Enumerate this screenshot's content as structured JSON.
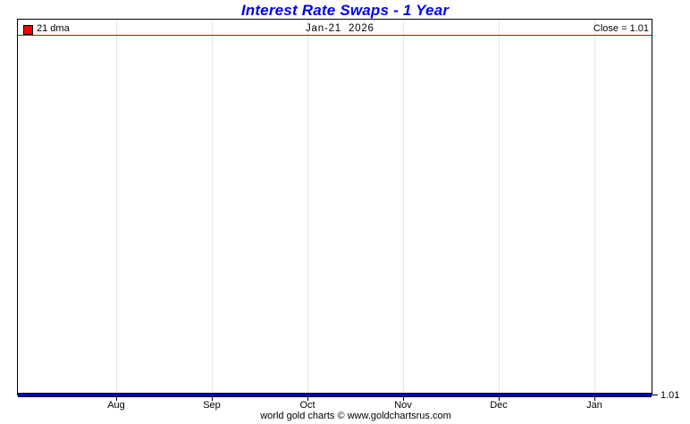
{
  "chart": {
    "title": "Interest Rate Swaps - 1 Year",
    "header": {
      "legend_label": "21 dma",
      "date": "Jan-21  2026",
      "close_label": "Close = 1.01"
    },
    "right_axis_label": "1.01",
    "footer": "world gold charts © www.goldchartsrus.com"
  },
  "chart_data": {
    "type": "line",
    "title": "Interest Rate Swaps - 1 Year",
    "x_ticks": [
      "Aug",
      "Sep",
      "Oct",
      "Nov",
      "Dec",
      "Jan"
    ],
    "series": [
      {
        "name": "Close",
        "color": "#0000cc",
        "values": [
          1.01,
          1.01,
          1.01,
          1.01,
          1.01,
          1.01
        ]
      },
      {
        "name": "21 dma",
        "color": "#ff0000",
        "values": [
          1.01,
          1.01,
          1.01,
          1.01,
          1.01,
          1.01
        ]
      }
    ],
    "close": 1.01,
    "as_of_date": "Jan-21 2026",
    "ylim_right_label": "1.01",
    "grid": "vertical month gridlines only",
    "legend_position": "top-left header row",
    "annotations": [
      "Close = 1.01"
    ],
    "colors": {
      "title": "#0000f0",
      "gridline": "#dbe7f5",
      "header_separator": "#dd0000",
      "data_line": "#0000cc",
      "legend_marker": "#ff0000",
      "border": "#000000"
    }
  }
}
